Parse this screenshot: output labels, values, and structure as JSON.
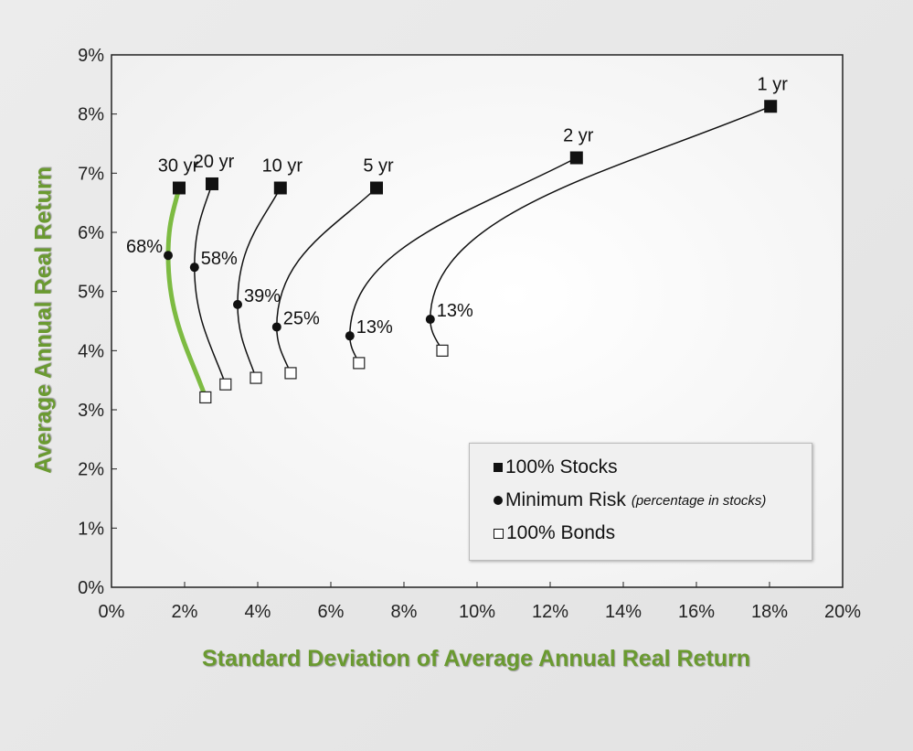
{
  "chart_data": {
    "type": "line",
    "title": "",
    "xlabel": "Standard Deviation of Average Annual Real Return",
    "ylabel": "Average Annual Real Return",
    "xlim": [
      0,
      20
    ],
    "ylim": [
      0,
      9
    ],
    "x_ticks": [
      "0%",
      "2%",
      "4%",
      "6%",
      "8%",
      "10%",
      "12%",
      "14%",
      "16%",
      "18%",
      "20%"
    ],
    "y_ticks": [
      "0%",
      "1%",
      "2%",
      "3%",
      "4%",
      "5%",
      "6%",
      "7%",
      "8%",
      "9%"
    ],
    "grid": false,
    "legend_position": "bottom-right",
    "legend": {
      "stocks": "100% Stocks",
      "minrisk": "Minimum Risk",
      "minrisk_note": "(percentage in stocks)",
      "bonds": "100% Bonds"
    },
    "highlight_color": "#7dbb42",
    "series": [
      {
        "name": "1 yr",
        "stocks": [
          18.03,
          8.13
        ],
        "min_risk": [
          8.72,
          4.53
        ],
        "min_label": "13%",
        "bonds": [
          9.05,
          4.0
        ]
      },
      {
        "name": "2 yr",
        "stocks": [
          12.72,
          7.26
        ],
        "min_risk": [
          6.52,
          4.25
        ],
        "min_label": "13%",
        "bonds": [
          6.77,
          3.79
        ]
      },
      {
        "name": "5 yr",
        "stocks": [
          7.25,
          6.75
        ],
        "min_risk": [
          4.52,
          4.4
        ],
        "min_label": "25%",
        "bonds": [
          4.9,
          3.62
        ]
      },
      {
        "name": "10 yr",
        "stocks": [
          4.62,
          6.75
        ],
        "min_risk": [
          3.45,
          4.78
        ],
        "min_label": "39%",
        "bonds": [
          3.95,
          3.54
        ]
      },
      {
        "name": "20 yr",
        "stocks": [
          2.75,
          6.82
        ],
        "min_risk": [
          2.27,
          5.41
        ],
        "min_label": "58%",
        "bonds": [
          3.12,
          3.43
        ]
      },
      {
        "name": "30 yr",
        "stocks": [
          1.85,
          6.75
        ],
        "min_risk": [
          1.55,
          5.61
        ],
        "min_label": "68%",
        "bonds": [
          2.57,
          3.21
        ],
        "highlighted": true
      }
    ]
  }
}
